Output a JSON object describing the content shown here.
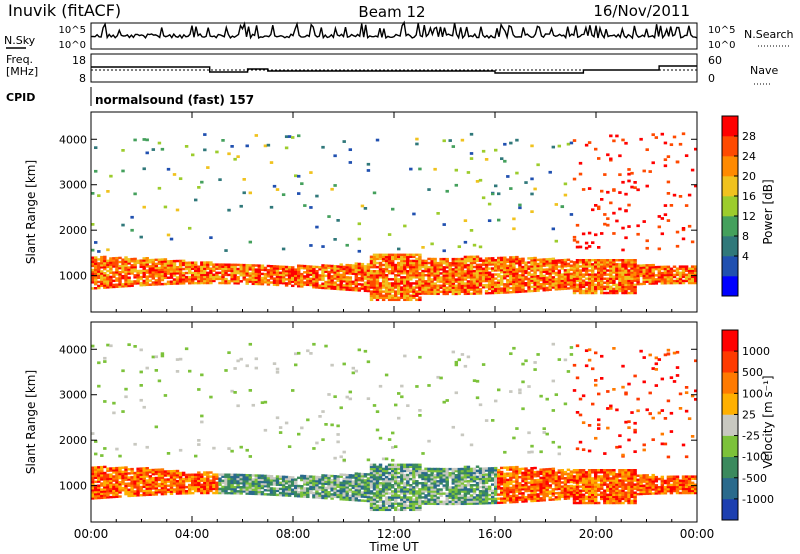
{
  "header": {
    "station": "Inuvik (fitACF)",
    "beam": "Beam 12",
    "date": "16/Nov/2011"
  },
  "top_panels": {
    "nsky_label": "N.Sky",
    "nsearch_label": "N.Search",
    "noise_ticks_left": [
      "10^5",
      "10^0"
    ],
    "noise_ticks_right": [
      "10^5",
      "10^0"
    ],
    "freq_label_line1": "Freq.",
    "freq_label_line2": "[MHz]",
    "freq_ticks": [
      "18",
      "8"
    ],
    "nave_label": "Nave",
    "nave_ticks": [
      "60",
      "0"
    ],
    "cpid_label": "CPID",
    "cpid_value": "normalsound (fast) 157"
  },
  "chart_data": [
    {
      "type": "heatmap",
      "panel": "power",
      "ylabel": "Slant Range [km]",
      "yticks": [
        "4000",
        "3000",
        "2000",
        "1000"
      ],
      "ylim": [
        200,
        4600
      ],
      "xlim": [
        0,
        24
      ],
      "colorbar_label": "Power [dB]",
      "colorbar_ticks": [
        "28",
        "24",
        "20",
        "16",
        "12",
        "8",
        "4"
      ],
      "colors": [
        "#0000ff",
        "#2050b0",
        "#30787a",
        "#44a05c",
        "#9ccc2c",
        "#f0c21e",
        "#ff8a00",
        "#ff4a00",
        "#ff0000"
      ],
      "x": [
        "00:00",
        "04:00",
        "08:00",
        "12:00",
        "16:00",
        "20:00",
        "00:00"
      ],
      "main_band_km": [
        [
          0,
          700,
          1300
        ],
        [
          4,
          750,
          1350
        ],
        [
          8,
          800,
          1300
        ],
        [
          12,
          500,
          1400
        ],
        [
          16,
          800,
          1250
        ],
        [
          20,
          650,
          1300
        ],
        [
          24,
          700,
          1300
        ]
      ]
    },
    {
      "type": "heatmap",
      "panel": "velocity",
      "ylabel": "Slant Range [km]",
      "yticks": [
        "4000",
        "3000",
        "2000",
        "1000"
      ],
      "ylim": [
        200,
        4600
      ],
      "xlim": [
        0,
        24
      ],
      "colorbar_label": "Velocity [m s⁻¹]",
      "colorbar_ticks": [
        "1000",
        "500",
        "100",
        "25",
        "-25",
        "-100",
        "-500",
        "-1000"
      ],
      "colors": [
        "#1c3fb0",
        "#2a6a8c",
        "#3b8a5e",
        "#7cc23a",
        "#c8c8c0",
        "#ffb000",
        "#ff7a00",
        "#ff3a00",
        "#ff0000"
      ],
      "x": [
        "00:00",
        "04:00",
        "08:00",
        "12:00",
        "16:00",
        "20:00",
        "00:00"
      ]
    }
  ],
  "xaxis": {
    "ticks": [
      "00:00",
      "04:00",
      "08:00",
      "12:00",
      "16:00",
      "20:00",
      "00:00"
    ],
    "label": "Time UT"
  }
}
